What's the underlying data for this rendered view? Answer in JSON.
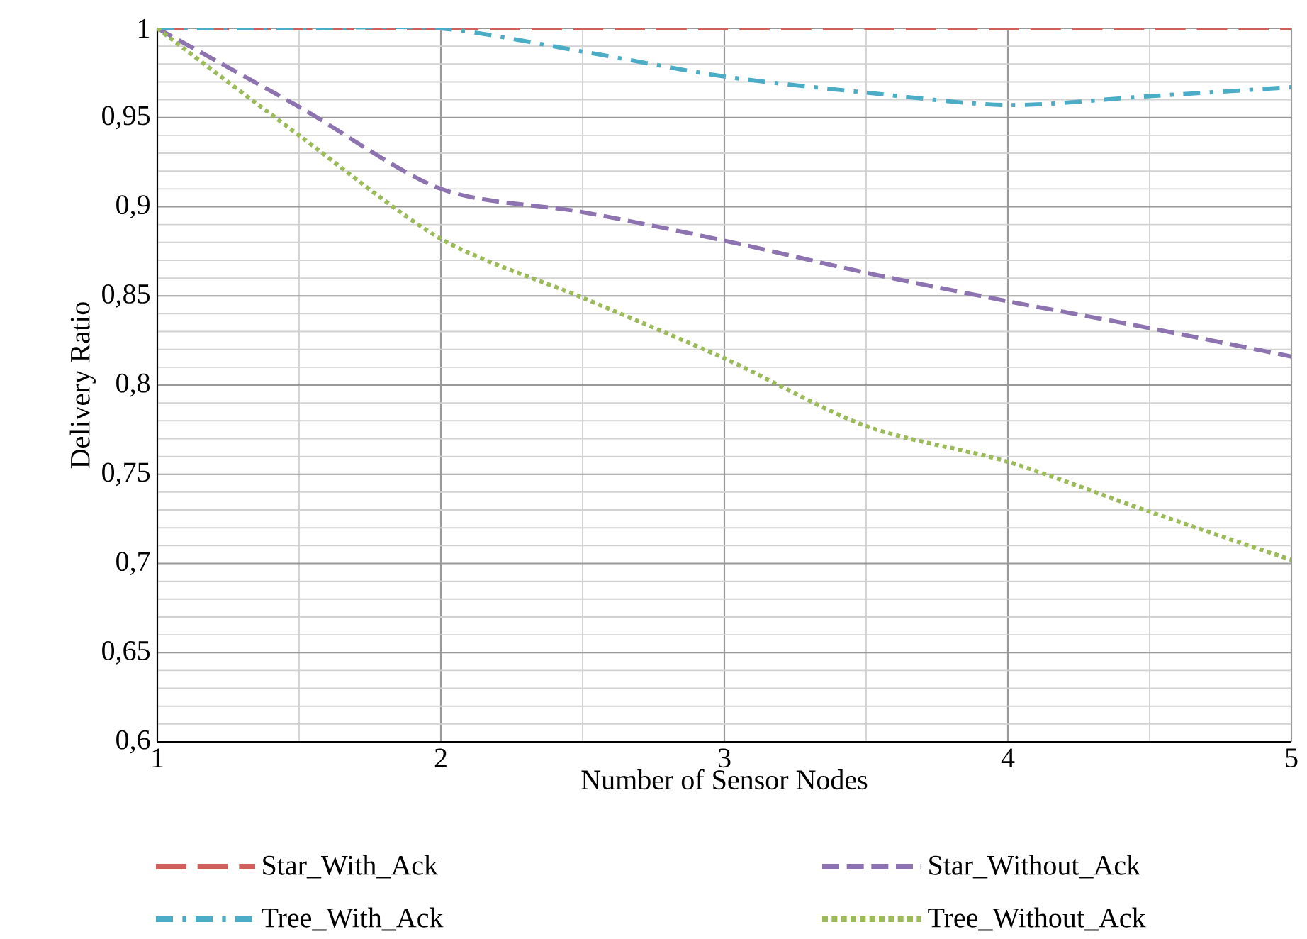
{
  "chart_data": {
    "type": "line",
    "xlabel": "Number of Sensor Nodes",
    "ylabel": "Delivery Ratio",
    "x": [
      1,
      1.5,
      2,
      2.5,
      3,
      3.5,
      4,
      4.5,
      5
    ],
    "xlim": [
      1,
      5
    ],
    "xticks": [
      1,
      2,
      3,
      4,
      5
    ],
    "ylim": [
      0.6,
      1
    ],
    "yticks": [
      {
        "value": 0.6,
        "label": "0,6"
      },
      {
        "value": 0.65,
        "label": "0,65"
      },
      {
        "value": 0.7,
        "label": "0,7"
      },
      {
        "value": 0.75,
        "label": "0,75"
      },
      {
        "value": 0.8,
        "label": "0,8"
      },
      {
        "value": 0.85,
        "label": "0,85"
      },
      {
        "value": 0.9,
        "label": "0,9"
      },
      {
        "value": 0.95,
        "label": "0,95"
      },
      {
        "value": 1,
        "label": "1"
      }
    ],
    "grid": true,
    "legend": "bottom",
    "marker": "none",
    "series": [
      {
        "name": "Star_With_Ack",
        "color": "#d0605e",
        "line_style": "dashed",
        "values": [
          1,
          1,
          1,
          1,
          1,
          1,
          1,
          1,
          1
        ]
      },
      {
        "name": "Star_Without_Ack",
        "color": "#8d74b0",
        "line_style": "dashed",
        "values": [
          1,
          0.956,
          0.91,
          0.897,
          0.881,
          0.863,
          0.847,
          0.832,
          0.816
        ]
      },
      {
        "name": "Tree_With_Ack",
        "color": "#4bacc6",
        "line_style": "dashdot",
        "values": [
          1,
          1,
          1,
          0.987,
          0.973,
          0.964,
          0.957,
          0.962,
          0.967
        ]
      },
      {
        "name": "Tree_Without_Ack",
        "color": "#9bbb59",
        "line_style": "dotted",
        "values": [
          1,
          0.94,
          0.882,
          0.849,
          0.815,
          0.777,
          0.757,
          0.729,
          0.702
        ]
      }
    ]
  }
}
